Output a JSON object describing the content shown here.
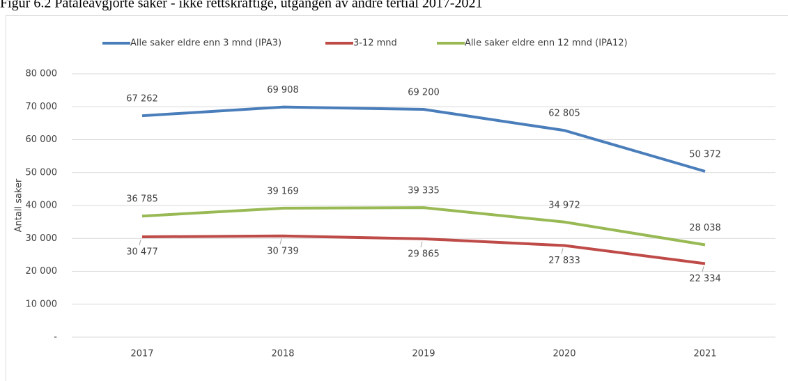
{
  "chart_data": {
    "type": "line",
    "title": "Figur 6.2 Påtaleavgjorte saker - ikke rettskraftige, utgangen av andre tertial 2017-2021",
    "y_label": "Antall saker",
    "categories": [
      "2017",
      "2018",
      "2019",
      "2020",
      "2021"
    ],
    "series": [
      {
        "name": "Alle saker eldre enn 3 mnd (IPA3)",
        "color": "#4a7ebb",
        "values": [
          67262,
          69908,
          69200,
          62805,
          50372
        ],
        "value_labels": [
          "67 262",
          "69 908",
          "69 200",
          "62 805",
          "50 372"
        ]
      },
      {
        "name": "3-12 mnd",
        "color": "#be4b48",
        "values": [
          30477,
          30739,
          29865,
          27833,
          22334
        ],
        "value_labels": [
          "30 477",
          "30 739",
          "29 865",
          "27 833",
          "22 334"
        ]
      },
      {
        "name": "Alle saker eldre enn 12 mnd (IPA12)",
        "color": "#98b954",
        "values": [
          36785,
          39169,
          39335,
          34972,
          28038
        ],
        "value_labels": [
          "36 785",
          "39 169",
          "39 335",
          "34 972",
          "28 038"
        ]
      }
    ],
    "ylim": [
      0,
      80000
    ],
    "yticks": [
      {
        "value": 0,
        "label": "-"
      },
      {
        "value": 10000,
        "label": "10 000"
      },
      {
        "value": 20000,
        "label": "20 000"
      },
      {
        "value": 30000,
        "label": "30 000"
      },
      {
        "value": 40000,
        "label": "40 000"
      },
      {
        "value": 50000,
        "label": "50 000"
      },
      {
        "value": 60000,
        "label": "60 000"
      },
      {
        "value": 70000,
        "label": "70 000"
      },
      {
        "value": 80000,
        "label": "80 000"
      }
    ],
    "grid": true,
    "legend": "top"
  }
}
